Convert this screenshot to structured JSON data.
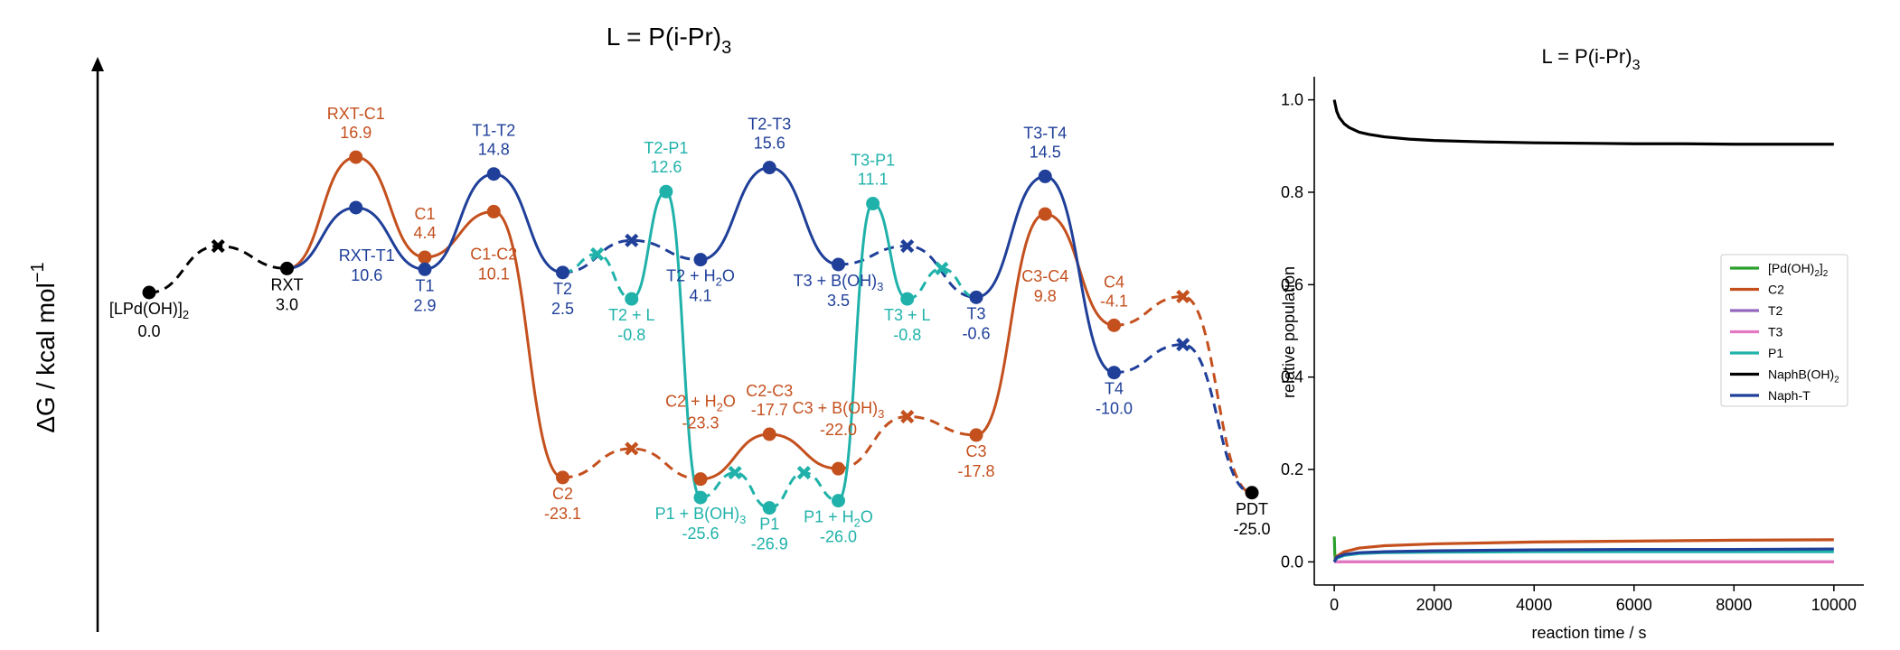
{
  "colors": {
    "black": "#000000",
    "blue": "#1f3f99",
    "orange": "#c4501e",
    "teal": "#20b2aa",
    "green": "#2ca02c",
    "purple": "#9467bd",
    "pink": "#e377c2"
  },
  "chart_data": [
    {
      "type": "line",
      "kind": "free-energy-profile",
      "title": "L = P(i-Pr)₃",
      "title_main": "L = P(i-Pr)",
      "title_sub": "3",
      "ylabel": "ΔG / kcal mol⁻¹",
      "ylabel_main": "ΔG / kcal mol",
      "ylabel_sup": "−1",
      "ylim": [
        -36,
        37
      ],
      "xlim": [
        0,
        16
      ],
      "states": [
        {
          "id": "lpd",
          "x": 0.0,
          "y": 0.0,
          "marker": "dot",
          "color": "black",
          "label": "[LPd(OH)]",
          "label_sub": "2",
          "value": "0.0"
        },
        {
          "id": "ts_lpd",
          "x": 1.0,
          "y": 5.8,
          "marker": "cross",
          "color": "black"
        },
        {
          "id": "rxt",
          "x": 2.0,
          "y": 3.0,
          "marker": "dot",
          "color": "black",
          "label": "RXT",
          "value": "3.0"
        },
        {
          "id": "rxt_c1",
          "x": 3.0,
          "y": 16.9,
          "marker": "dot",
          "color": "orange",
          "label": "RXT-C1",
          "value": "16.9"
        },
        {
          "id": "rxt_t1",
          "x": 3.0,
          "y": 10.6,
          "marker": "dot",
          "color": "blue",
          "label": "RXT-T1",
          "value": "10.6"
        },
        {
          "id": "c1",
          "x": 4.0,
          "y": 4.4,
          "marker": "dot",
          "color": "orange",
          "label": "C1",
          "value": "4.4"
        },
        {
          "id": "t1",
          "x": 4.0,
          "y": 2.9,
          "marker": "dot",
          "color": "blue",
          "label": "T1",
          "value": "2.9"
        },
        {
          "id": "c1_c2",
          "x": 5.0,
          "y": 10.1,
          "marker": "dot",
          "color": "orange",
          "label": "C1-C2",
          "value": "10.1"
        },
        {
          "id": "t1_t2",
          "x": 5.0,
          "y": 14.8,
          "marker": "dot",
          "color": "blue",
          "label": "T1-T2",
          "value": "14.8"
        },
        {
          "id": "c2",
          "x": 6.0,
          "y": -23.1,
          "marker": "dot",
          "color": "orange",
          "label": "C2",
          "value": "-23.1"
        },
        {
          "id": "t2",
          "x": 6.0,
          "y": 2.5,
          "marker": "dot",
          "color": "blue",
          "label": "T2",
          "value": "2.5"
        },
        {
          "id": "ts_t2_l",
          "x": 6.5,
          "y": 4.8,
          "marker": "cross",
          "color": "teal"
        },
        {
          "id": "t2_l",
          "x": 7.0,
          "y": -0.8,
          "marker": "dot",
          "color": "teal",
          "label": "T2 + L",
          "value": "-0.8"
        },
        {
          "id": "ts_c2_h2o",
          "x": 7.0,
          "y": -19.5,
          "marker": "cross",
          "color": "orange"
        },
        {
          "id": "ts_t2_h2o",
          "x": 7.0,
          "y": 6.5,
          "marker": "cross",
          "color": "blue"
        },
        {
          "id": "t2_p1",
          "x": 7.5,
          "y": 12.6,
          "marker": "dot",
          "color": "teal",
          "label": "T2-P1",
          "value": "12.6"
        },
        {
          "id": "c2_h2o",
          "x": 8.0,
          "y": -23.3,
          "marker": "dot",
          "color": "orange",
          "label": "C2 + H",
          "label_sub": "2",
          "label_tail": "O",
          "value": "-23.3"
        },
        {
          "id": "t2_h2o",
          "x": 8.0,
          "y": 4.1,
          "marker": "dot",
          "color": "blue",
          "label": "T2 + H",
          "label_sub": "2",
          "label_tail": "O",
          "value": "4.1"
        },
        {
          "id": "p1_boh3",
          "x": 8.0,
          "y": -25.6,
          "marker": "dot",
          "color": "teal",
          "label": "P1 + B(OH)",
          "label_sub": "3",
          "value": "-25.6"
        },
        {
          "id": "ts_p1a",
          "x": 8.5,
          "y": -22.5,
          "marker": "cross",
          "color": "teal"
        },
        {
          "id": "c2_c3",
          "x": 9.0,
          "y": -17.7,
          "marker": "dot",
          "color": "orange",
          "label": "C2-C3",
          "value": "-17.7"
        },
        {
          "id": "t2_t3",
          "x": 9.0,
          "y": 15.6,
          "marker": "dot",
          "color": "blue",
          "label": "T2-T3",
          "value": "15.6"
        },
        {
          "id": "p1",
          "x": 9.0,
          "y": -26.9,
          "marker": "dot",
          "color": "teal",
          "label": "P1",
          "value": "-26.9"
        },
        {
          "id": "ts_p1b",
          "x": 9.5,
          "y": -22.5,
          "marker": "cross",
          "color": "teal"
        },
        {
          "id": "c3_boh3",
          "x": 10.0,
          "y": -22.0,
          "marker": "dot",
          "color": "orange",
          "label": "C3 + B(OH)",
          "label_sub": "3",
          "value": "-22.0"
        },
        {
          "id": "t3_boh3",
          "x": 10.0,
          "y": 3.5,
          "marker": "dot",
          "color": "blue",
          "label": "T3 + B(OH)",
          "label_sub": "3",
          "value": "3.5"
        },
        {
          "id": "p1_h2o",
          "x": 10.0,
          "y": -26.0,
          "marker": "dot",
          "color": "teal",
          "label": "P1 + H",
          "label_sub": "2",
          "label_tail": "O",
          "value": "-26.0"
        },
        {
          "id": "t3_p1",
          "x": 10.5,
          "y": 11.1,
          "marker": "dot",
          "color": "teal",
          "label": "T3-P1",
          "value": "11.1"
        },
        {
          "id": "ts_c3_boh3",
          "x": 11.0,
          "y": -15.5,
          "marker": "cross",
          "color": "orange"
        },
        {
          "id": "ts_t3_boh3",
          "x": 11.0,
          "y": 5.8,
          "marker": "cross",
          "color": "blue"
        },
        {
          "id": "t3_l",
          "x": 11.0,
          "y": -0.8,
          "marker": "dot",
          "color": "teal",
          "label": "T3 + L",
          "value": "-0.8"
        },
        {
          "id": "ts_t3_l",
          "x": 11.5,
          "y": 3.0,
          "marker": "cross",
          "color": "teal"
        },
        {
          "id": "c3",
          "x": 12.0,
          "y": -17.8,
          "marker": "dot",
          "color": "orange",
          "label": "C3",
          "value": "-17.8"
        },
        {
          "id": "t3",
          "x": 12.0,
          "y": -0.6,
          "marker": "dot",
          "color": "blue",
          "label": "T3",
          "value": "-0.6"
        },
        {
          "id": "c3_c4",
          "x": 13.0,
          "y": 9.8,
          "marker": "dot",
          "color": "orange",
          "label": "C3-C4",
          "value": "9.8"
        },
        {
          "id": "t3_t4",
          "x": 13.0,
          "y": 14.5,
          "marker": "dot",
          "color": "blue",
          "label": "T3-T4",
          "value": "14.5"
        },
        {
          "id": "c4",
          "x": 14.0,
          "y": -4.1,
          "marker": "dot",
          "color": "orange",
          "label": "C4",
          "value": "-4.1"
        },
        {
          "id": "t4",
          "x": 14.0,
          "y": -10.0,
          "marker": "dot",
          "color": "blue",
          "label": "T4",
          "value": "-10.0"
        },
        {
          "id": "ts_c4",
          "x": 15.0,
          "y": -0.5,
          "marker": "cross",
          "color": "orange"
        },
        {
          "id": "ts_t4",
          "x": 15.0,
          "y": -6.5,
          "marker": "cross",
          "color": "blue"
        },
        {
          "id": "pdt",
          "x": 16.0,
          "y": -25.0,
          "marker": "dot",
          "color": "black",
          "label": "PDT",
          "value": "-25.0"
        }
      ],
      "connections": [
        {
          "from": "lpd",
          "via": "ts_lpd",
          "to": "rxt",
          "style": "dashed",
          "color": "black"
        },
        {
          "from": "rxt",
          "to": "rxt_c1",
          "style": "solid",
          "color": "orange"
        },
        {
          "from": "rxt_c1",
          "to": "c1",
          "style": "solid",
          "color": "orange"
        },
        {
          "from": "c1",
          "to": "c1_c2",
          "style": "solid",
          "color": "orange"
        },
        {
          "from": "c1_c2",
          "to": "c2",
          "style": "solid",
          "color": "orange"
        },
        {
          "from": "c2",
          "via": "ts_c2_h2o",
          "to": "c2_h2o",
          "style": "dashed",
          "color": "orange"
        },
        {
          "from": "c2_h2o",
          "to": "c2_c3",
          "style": "solid",
          "color": "orange"
        },
        {
          "from": "c2_c3",
          "to": "c3_boh3",
          "style": "solid",
          "color": "orange"
        },
        {
          "from": "c3_boh3",
          "via": "ts_c3_boh3",
          "to": "c3",
          "style": "dashed",
          "color": "orange"
        },
        {
          "from": "c3",
          "to": "c3_c4",
          "style": "solid",
          "color": "orange"
        },
        {
          "from": "c3_c4",
          "to": "c4",
          "style": "solid",
          "color": "orange"
        },
        {
          "from": "c4",
          "via": "ts_c4",
          "to": "pdt",
          "style": "dashed",
          "color": "orange"
        },
        {
          "from": "rxt",
          "to": "rxt_t1",
          "style": "solid",
          "color": "blue"
        },
        {
          "from": "rxt_t1",
          "to": "t1",
          "style": "solid",
          "color": "blue"
        },
        {
          "from": "t1",
          "to": "t1_t2",
          "style": "solid",
          "color": "blue"
        },
        {
          "from": "t1_t2",
          "to": "t2",
          "style": "solid",
          "color": "blue"
        },
        {
          "from": "t2",
          "via": "ts_t2_h2o",
          "to": "t2_h2o",
          "style": "dashed",
          "color": "blue"
        },
        {
          "from": "t2_h2o",
          "to": "t2_t3",
          "style": "solid",
          "color": "blue"
        },
        {
          "from": "t2_t3",
          "to": "t3_boh3",
          "style": "solid",
          "color": "blue"
        },
        {
          "from": "t3_boh3",
          "via": "ts_t3_boh3",
          "to": "t3",
          "style": "dashed",
          "color": "blue"
        },
        {
          "from": "t3",
          "to": "t3_t4",
          "style": "solid",
          "color": "blue"
        },
        {
          "from": "t3_t4",
          "to": "t4",
          "style": "solid",
          "color": "blue"
        },
        {
          "from": "t4",
          "via": "ts_t4",
          "to": "pdt",
          "style": "dashed",
          "color": "blue"
        },
        {
          "from": "t2",
          "via": "ts_t2_l",
          "to": "t2_l",
          "style": "dashed",
          "color": "teal"
        },
        {
          "from": "t2_l",
          "to": "t2_p1",
          "style": "solid",
          "color": "teal"
        },
        {
          "from": "t2_p1",
          "to": "p1_boh3",
          "style": "solid",
          "color": "teal"
        },
        {
          "from": "p1_boh3",
          "via": "ts_p1a",
          "to": "p1",
          "style": "dashed",
          "color": "teal"
        },
        {
          "from": "p1",
          "via": "ts_p1b",
          "to": "p1_h2o",
          "style": "dashed",
          "color": "teal"
        },
        {
          "from": "p1_h2o",
          "to": "t3_p1",
          "style": "solid",
          "color": "teal"
        },
        {
          "from": "t3_p1",
          "to": "t3_l",
          "style": "solid",
          "color": "teal"
        },
        {
          "from": "t3_l",
          "via": "ts_t3_l",
          "to": "t3",
          "style": "dashed",
          "color": "teal"
        }
      ]
    },
    {
      "type": "line",
      "kind": "kinetics",
      "title": "L = P(i-Pr)₃",
      "title_main": "L = P(i-Pr)",
      "title_sub": "3",
      "xlabel": "reaction time / s",
      "ylabel": "relative population",
      "xlim": [
        -400,
        10600
      ],
      "ylim": [
        -0.05,
        1.05
      ],
      "xticks": [
        0,
        2000,
        4000,
        6000,
        8000,
        10000
      ],
      "yticks": [
        0.0,
        0.2,
        0.4,
        0.6,
        0.8,
        1.0
      ],
      "ytick_labels": [
        "0.0",
        "0.2",
        "0.4",
        "0.6",
        "0.8",
        "1.0"
      ],
      "legend_position": "center-right",
      "series": [
        {
          "name": "[Pd(OH)₂]₂",
          "label_main": "[Pd(OH)",
          "label_sub1": "2",
          "label_mid": "]",
          "label_sub2": "2",
          "color": "green",
          "x": [
            0,
            5,
            10,
            20,
            40
          ],
          "y": [
            0.055,
            0.04,
            0.02,
            0.005,
            0.0
          ]
        },
        {
          "name": "C2",
          "label_main": "C2",
          "color": "orange",
          "x": [
            0,
            50,
            200,
            500,
            1000,
            2000,
            4000,
            6000,
            8000,
            10000
          ],
          "y": [
            0.0,
            0.012,
            0.022,
            0.03,
            0.035,
            0.039,
            0.043,
            0.045,
            0.047,
            0.048
          ]
        },
        {
          "name": "T2",
          "label_main": "T2",
          "color": "purple",
          "x": [
            0,
            10000
          ],
          "y": [
            0.0,
            0.0
          ]
        },
        {
          "name": "T3",
          "label_main": "T3",
          "color": "pink",
          "x": [
            0,
            10000
          ],
          "y": [
            0.0,
            0.0
          ]
        },
        {
          "name": "P1",
          "label_main": "P1",
          "color": "teal",
          "x": [
            0,
            50,
            200,
            500,
            1000,
            2000,
            4000,
            6000,
            8000,
            10000
          ],
          "y": [
            0.0,
            0.008,
            0.014,
            0.018,
            0.02,
            0.021,
            0.022,
            0.022,
            0.022,
            0.022
          ]
        },
        {
          "name": "NaphB(OH)₂",
          "label_main": "NaphB(OH)",
          "label_sub1": "2",
          "color": "black",
          "x": [
            0,
            50,
            100,
            200,
            300,
            500,
            700,
            1000,
            1500,
            2000,
            3000,
            4000,
            5000,
            6000,
            7000,
            8000,
            9000,
            10000
          ],
          "y": [
            1.0,
            0.975,
            0.962,
            0.948,
            0.94,
            0.93,
            0.925,
            0.92,
            0.915,
            0.912,
            0.909,
            0.907,
            0.906,
            0.905,
            0.905,
            0.904,
            0.904,
            0.904
          ]
        },
        {
          "name": "Naph-T",
          "label_main": "Naph-T",
          "color": "blue",
          "x": [
            0,
            50,
            200,
            500,
            1000,
            2000,
            4000,
            6000,
            8000,
            10000
          ],
          "y": [
            0.0,
            0.01,
            0.016,
            0.02,
            0.022,
            0.024,
            0.026,
            0.027,
            0.027,
            0.028
          ]
        }
      ]
    }
  ]
}
